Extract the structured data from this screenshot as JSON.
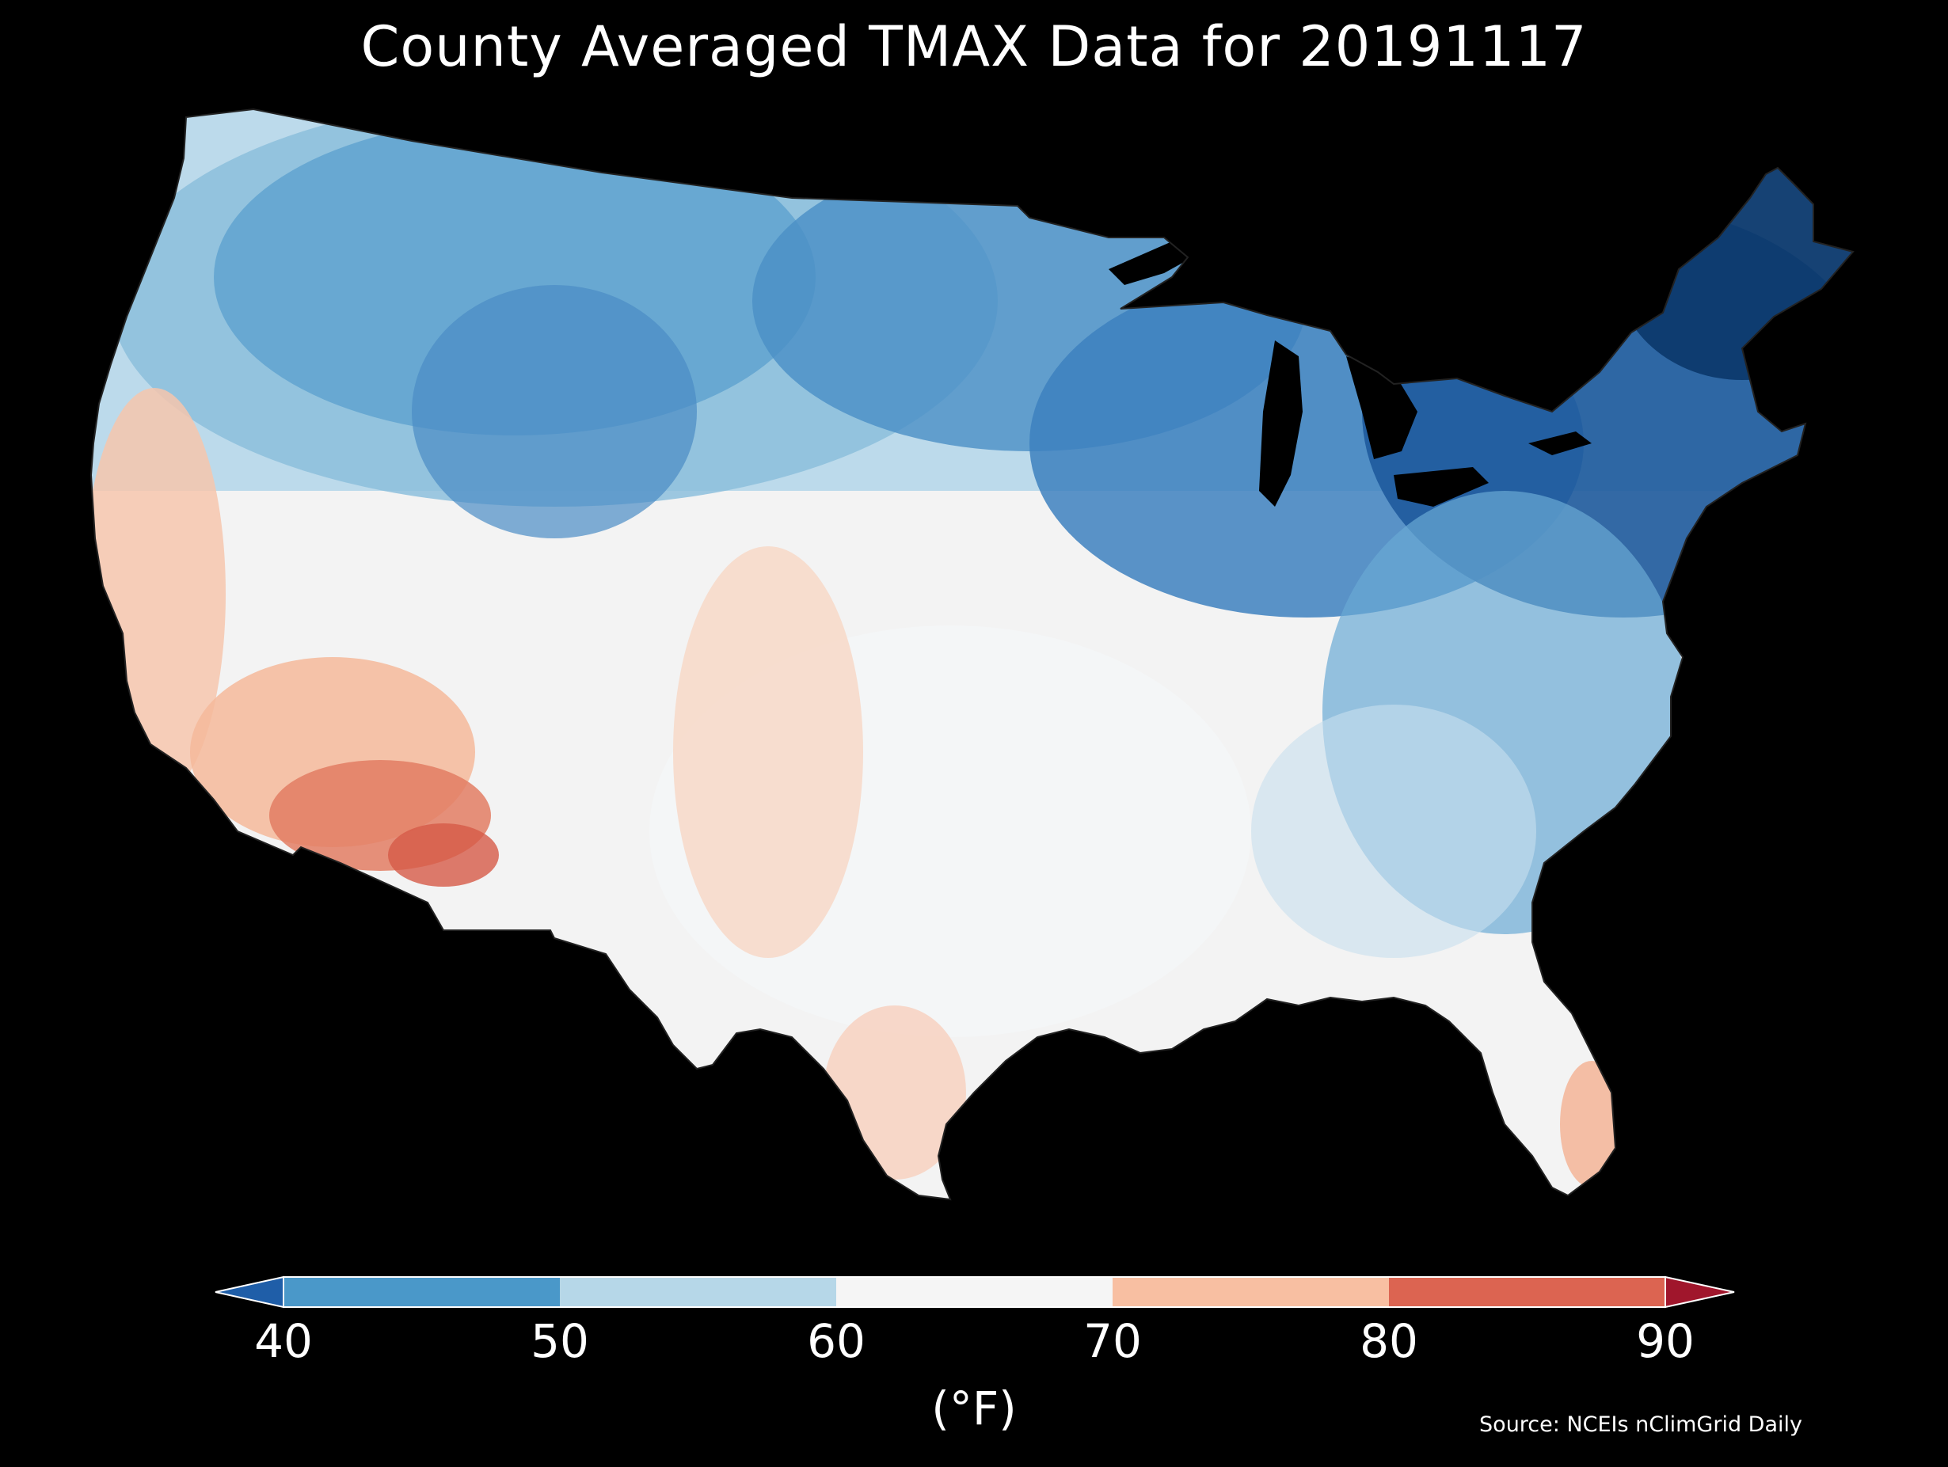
{
  "title": "County Averaged TMAX Data for 20191117",
  "source": "Source: NCEIs nClimGrid Daily",
  "colorbar": {
    "unit_label": "(°F)",
    "ticks": [
      "40",
      "50",
      "60",
      "70",
      "80",
      "90"
    ],
    "bins": [
      {
        "range": "<40",
        "color": "#1f5ea8"
      },
      {
        "range": "40-50",
        "color": "#4a98c9"
      },
      {
        "range": "50-60",
        "color": "#b6d7e8"
      },
      {
        "range": "60-70",
        "color": "#f5f5f5"
      },
      {
        "range": "70-80",
        "color": "#f8bfa2"
      },
      {
        "range": "80-90",
        "color": "#dc6451"
      },
      {
        "range": ">90",
        "color": "#a0162c"
      }
    ]
  },
  "map": {
    "region": "Contiguous United States",
    "units": "county",
    "variable": "TMAX"
  }
}
